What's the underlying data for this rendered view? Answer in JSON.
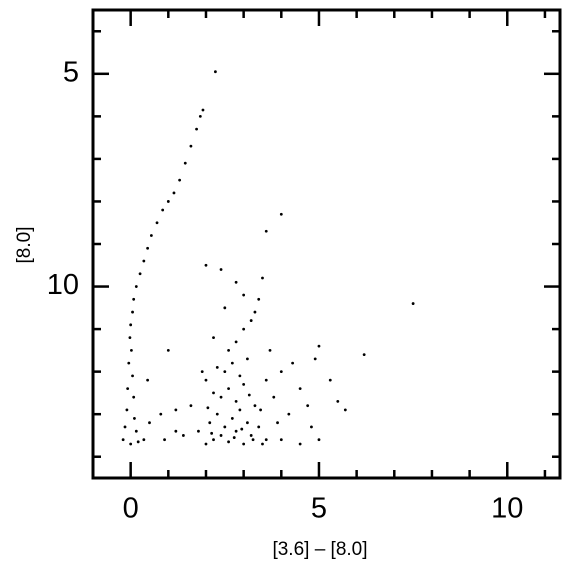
{
  "chart_data": {
    "type": "scatter",
    "xlabel": "[3.6] – [8.0]",
    "ylabel": "[8.0]",
    "color": "#000000",
    "xlim": [
      -1,
      11.4
    ],
    "ylim": [
      14.5,
      3.5
    ],
    "xticks": [
      0,
      5,
      10
    ],
    "yticks": [
      5,
      10
    ],
    "xminorticks": [
      -1,
      1,
      2,
      3,
      4,
      6,
      7,
      8,
      9,
      11
    ],
    "yminorticks": [
      4,
      6,
      7,
      8,
      9,
      11,
      12,
      13,
      14
    ],
    "x": [
      2.25,
      1.92,
      1.85,
      1.75,
      1.6,
      1.45,
      1.3,
      1.15,
      1.0,
      0.85,
      0.7,
      0.55,
      0.45,
      0.35,
      0.25,
      0.15,
      0.08,
      0.05,
      0.0,
      -0.02,
      0.02,
      -0.05,
      0.05,
      -0.08,
      0.08,
      -0.1,
      0.1,
      -0.15,
      0.15,
      -0.2,
      0.2,
      0.0,
      0.35,
      0.5,
      0.45,
      0.9,
      1.2,
      2.0,
      2.2,
      2.4,
      2.6,
      2.8,
      3.0,
      3.2,
      3.4,
      3.6,
      1.8,
      2.1,
      2.3,
      2.5,
      2.7,
      2.9,
      3.1,
      3.3,
      2.4,
      2.6,
      2.8,
      3.0,
      2.2,
      2.5,
      2.7,
      2.9,
      3.1,
      2.3,
      2.6,
      2.8,
      3.0,
      3.2,
      2.5,
      3.0,
      2.8,
      3.3,
      2.2,
      1.9,
      1.6,
      1.4,
      3.6,
      3.8,
      4.0,
      4.2,
      4.5,
      4.8,
      5.0,
      3.7,
      4.3,
      5.0,
      4.7,
      3.5,
      3.4,
      2.4,
      3.5,
      4.0,
      4.5,
      1.2,
      1.0,
      0.8,
      2.0,
      3.9,
      2.15,
      2.75,
      3.25,
      3.45,
      2.05,
      2.95,
      3.15,
      7.5,
      4.0,
      3.6,
      2.0,
      6.2,
      5.7,
      5.3,
      5.5,
      4.9
    ],
    "values": [
      4.95,
      5.85,
      6.0,
      6.3,
      6.7,
      7.1,
      7.5,
      7.8,
      8.0,
      8.2,
      8.5,
      8.8,
      9.1,
      9.4,
      9.7,
      10.0,
      10.3,
      10.6,
      10.9,
      11.2,
      11.5,
      11.8,
      12.1,
      12.4,
      12.6,
      12.9,
      13.1,
      13.3,
      13.4,
      13.6,
      13.65,
      13.7,
      13.6,
      13.2,
      12.2,
      13.6,
      13.4,
      13.7,
      13.6,
      13.5,
      13.65,
      13.4,
      13.7,
      13.5,
      13.3,
      13.6,
      13.4,
      13.2,
      13.0,
      13.3,
      13.1,
      12.9,
      13.2,
      12.8,
      12.6,
      12.4,
      12.7,
      12.3,
      12.5,
      12.0,
      11.8,
      12.1,
      11.7,
      11.9,
      11.5,
      11.3,
      11.0,
      10.8,
      10.5,
      10.2,
      9.9,
      10.6,
      11.2,
      12.0,
      12.8,
      13.5,
      12.2,
      12.6,
      12.0,
      13.0,
      12.4,
      13.3,
      13.6,
      11.5,
      11.8,
      11.4,
      12.8,
      9.8,
      10.3,
      9.6,
      13.7,
      13.6,
      13.7,
      12.9,
      11.5,
      13.0,
      12.2,
      13.2,
      13.45,
      13.55,
      13.6,
      12.9,
      12.85,
      13.35,
      12.55,
      10.4,
      8.3,
      8.7,
      9.5,
      11.6,
      12.9,
      12.2,
      12.7,
      11.7
    ]
  }
}
